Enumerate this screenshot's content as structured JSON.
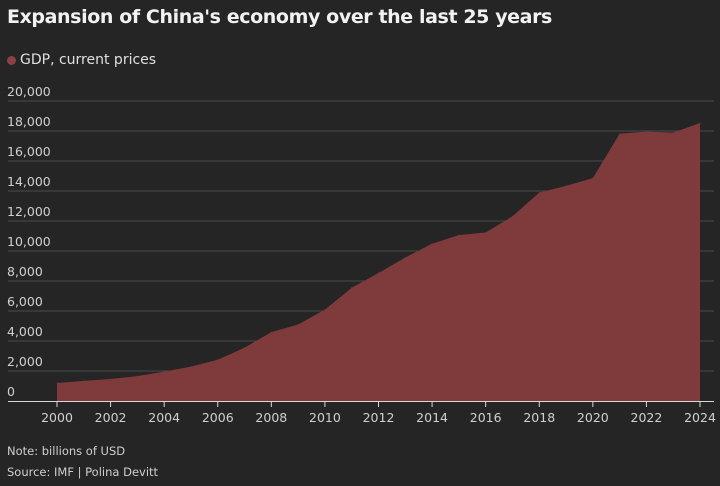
{
  "colors": {
    "background": "#252525",
    "area_fill": "#7f3b3b",
    "gridline": "#4a4a4a",
    "axis": "#d8d8d8",
    "legend_dot": "#8c4242"
  },
  "header": {
    "title": "Expansion of China's economy over the last 25 years"
  },
  "legend": {
    "label": "GDP, current prices"
  },
  "footer": {
    "note": "Note: billions of USD",
    "source": "Source: IMF | Polina Devitt"
  },
  "chart_data": {
    "type": "area",
    "title": "Expansion of China's economy over the last 25 years",
    "xlabel": "",
    "ylabel": "",
    "series": [
      {
        "name": "GDP, current prices",
        "x": [
          2000,
          2001,
          2002,
          2003,
          2004,
          2005,
          2006,
          2007,
          2008,
          2009,
          2010,
          2011,
          2012,
          2013,
          2014,
          2015,
          2016,
          2017,
          2018,
          2019,
          2020,
          2021,
          2022,
          2023,
          2024
        ],
        "values": [
          1200,
          1340,
          1470,
          1660,
          1960,
          2290,
          2750,
          3550,
          4590,
          5100,
          6090,
          7550,
          8530,
          9570,
          10480,
          11060,
          11230,
          12310,
          13890,
          14340,
          14860,
          17820,
          17960,
          17890,
          18530
        ]
      }
    ],
    "ylim": [
      0,
      20000
    ],
    "xlim": [
      2000,
      2024
    ],
    "y_ticks": [
      0,
      2000,
      4000,
      6000,
      8000,
      10000,
      12000,
      14000,
      16000,
      18000,
      20000
    ],
    "y_tick_labels": [
      "0",
      "2,000",
      "4,000",
      "6,000",
      "8,000",
      "10,000",
      "12,000",
      "14,000",
      "16,000",
      "18,000",
      "20,000"
    ],
    "x_ticks": [
      2000,
      2002,
      2004,
      2006,
      2008,
      2010,
      2012,
      2014,
      2016,
      2018,
      2020,
      2022,
      2024
    ],
    "x_tick_labels": [
      "2000",
      "2002",
      "2004",
      "2006",
      "2008",
      "2010",
      "2012",
      "2014",
      "2016",
      "2018",
      "2020",
      "2022",
      "2024"
    ],
    "grid": "horizontal",
    "legend_position": "top-left"
  }
}
